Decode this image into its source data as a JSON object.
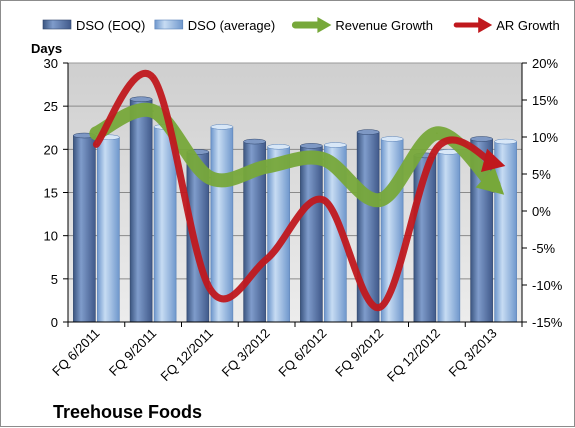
{
  "chart_data": {
    "type": "bar",
    "title": "Treehouse Foods",
    "ylabel": "Days",
    "ylim": [
      0,
      30
    ],
    "y_ticks": [
      "0",
      "5",
      "10",
      "15",
      "20",
      "25",
      "30"
    ],
    "y2lim": [
      -15,
      20
    ],
    "y2_ticks": [
      "-15%",
      "-10%",
      "-5%",
      "0%",
      "5%",
      "10%",
      "15%",
      "20%"
    ],
    "categories": [
      "FQ 6/2011",
      "FQ 9/2011",
      "FQ 12/2011",
      "FQ 3/2012",
      "FQ 6/2012",
      "FQ 9/2012",
      "FQ 12/2012",
      "FQ 3/2013"
    ],
    "series": [
      {
        "name": "DSO (EOQ)",
        "type": "bar",
        "axis": "left",
        "color": "#4f6fa3",
        "values": [
          21.6,
          25.8,
          19.7,
          20.9,
          20.4,
          22.0,
          19.3,
          21.2
        ]
      },
      {
        "name": "DSO (average)",
        "type": "bar",
        "axis": "left",
        "color": "#8fb4e3",
        "values": [
          21.4,
          22.6,
          22.6,
          20.3,
          20.5,
          21.2,
          19.7,
          20.9
        ]
      },
      {
        "name": "Revenue Growth",
        "type": "line",
        "axis": "right",
        "color": "#77a83a",
        "unit": "%",
        "values": [
          10.5,
          13.5,
          4.5,
          6.0,
          7.0,
          1.5,
          10.5,
          3.5
        ]
      },
      {
        "name": "AR Growth",
        "type": "line",
        "axis": "right",
        "color": "#c0181d",
        "unit": "%",
        "values": [
          9.0,
          18.0,
          -10.5,
          -6.5,
          1.5,
          -13.0,
          8.5,
          6.5
        ]
      }
    ],
    "legend_position": "top",
    "grid": true
  }
}
